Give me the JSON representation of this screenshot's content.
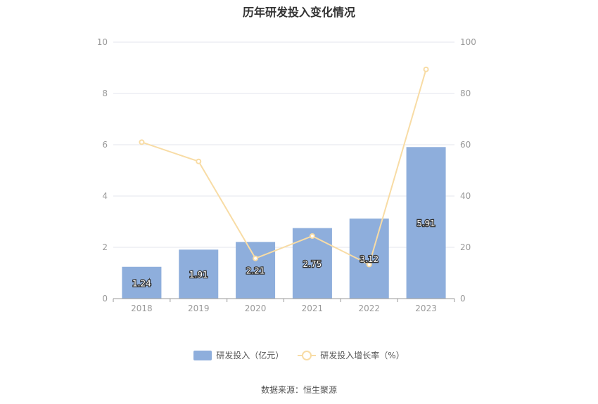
{
  "chart_data": {
    "type": "bar",
    "title": "历年研发投入变化情况",
    "categories": [
      "2018",
      "2019",
      "2020",
      "2021",
      "2022",
      "2023"
    ],
    "series": [
      {
        "name": "研发投入（亿元）",
        "type": "bar",
        "axis": "left",
        "values": [
          1.24,
          1.91,
          2.21,
          2.75,
          3.12,
          5.91
        ],
        "color": "#8eaedc"
      },
      {
        "name": "研发投入增长率（%）",
        "type": "line",
        "axis": "right",
        "values": [
          61.0,
          53.5,
          15.7,
          24.4,
          13.3,
          89.4
        ],
        "color": "#f8dca5"
      }
    ],
    "data_labels": [
      "1.24",
      "1.91",
      "2.21",
      "2.75",
      "3.12",
      "5.91"
    ],
    "y_left": {
      "min": 0,
      "max": 10,
      "ticks": [
        "0",
        "2",
        "4",
        "6",
        "8",
        "10"
      ]
    },
    "y_right": {
      "min": 0,
      "max": 100,
      "ticks": [
        "0",
        "20",
        "40",
        "60",
        "80",
        "100"
      ]
    },
    "grid": true,
    "legend_position": "bottom"
  },
  "legend": {
    "bar_label": "研发投入（亿元）",
    "line_label": "研发投入增长率（%）"
  },
  "source": "数据来源：恒生聚源"
}
